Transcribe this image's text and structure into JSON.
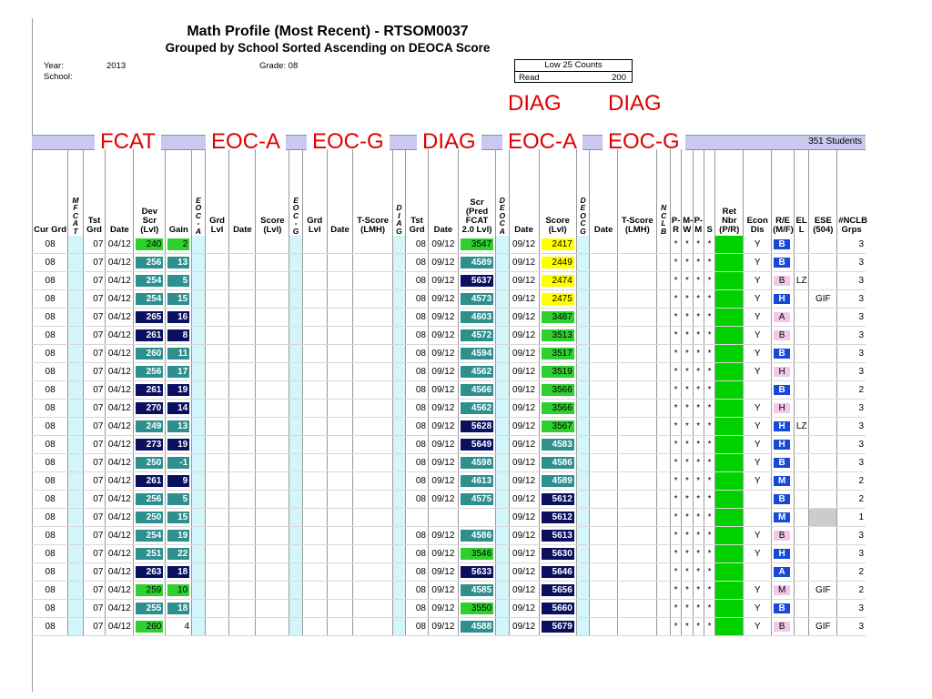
{
  "report": {
    "title": "Math Profile (Most Recent) - RTSOM0037",
    "subtitle": "Grouped by School Sorted Ascending on DEOCA Score",
    "year_label": "Year:",
    "year_value": "2013",
    "school_label": "School:",
    "grade_label": "Grade: 08",
    "low25_label": "Low 25 Counts",
    "low25_row_label": "Read",
    "low25_row_value": "200",
    "student_count": "351 Students"
  },
  "overlays": {
    "fcat": "FCAT",
    "eoca": "EOC-A",
    "eocg": "EOC-G",
    "diag": "DIAG",
    "diag_eoca_top": "DIAG",
    "diag_eoca_bottom": "EOC-A",
    "diag_eocg_top": "DIAG",
    "diag_eocg_bottom": "EOC-G"
  },
  "headers": [
    "Cur Grd",
    "MFCAT",
    "Tst Grd",
    "Date",
    "Dev Scr (Lvl)",
    "Gain",
    "EOC-A",
    "Grd Lvl",
    "Date",
    "Score (Lvl)",
    "EOC-G",
    "Grd Lvl",
    "Date",
    "T-Score (LMH)",
    "DIAG",
    "Tst Grd",
    "Date",
    "Scr (Pred FCAT 2.0 Lvl)",
    "DEOCA",
    "Date",
    "Score (Lvl)",
    "DEOCG",
    "Date",
    "T-Score (LMH)",
    "NCLB",
    "P-R",
    "M-W",
    "P-M",
    "S",
    "Ret Nbr (P/R)",
    "Econ Dis",
    "R/E (M/F)",
    "EL L",
    "ESE (504)",
    "#NCLB Grps"
  ],
  "rows": [
    {
      "cur": "08",
      "tst": "07",
      "date": "04/12",
      "dev": "240",
      "devc": "lime",
      "gain": "2",
      "dtst": "08",
      "ddate": "09/12",
      "scr": "3547",
      "scrc": "lime",
      "deodate": "09/12",
      "deoscore": "2417",
      "deoc": "yellow",
      "econ": "Y",
      "re": "B",
      "rec": "blue",
      "ell": "",
      "ese": "",
      "grps": "3"
    },
    {
      "cur": "08",
      "tst": "07",
      "date": "04/12",
      "dev": "256",
      "devc": "teal",
      "gain": "13",
      "dtst": "08",
      "ddate": "09/12",
      "scr": "4589",
      "scrc": "teal",
      "deodate": "09/12",
      "deoscore": "2449",
      "deoc": "yellow",
      "econ": "Y",
      "re": "B",
      "rec": "blue",
      "ell": "",
      "ese": "",
      "grps": "3"
    },
    {
      "cur": "08",
      "tst": "07",
      "date": "04/12",
      "dev": "254",
      "devc": "teal",
      "gain": "5",
      "dtst": "08",
      "ddate": "09/12",
      "scr": "5637",
      "scrc": "navy",
      "deodate": "09/12",
      "deoscore": "2474",
      "deoc": "yellow",
      "econ": "Y",
      "re": "B",
      "rec": "pink",
      "ell": "LZ",
      "ese": "",
      "grps": "3"
    },
    {
      "cur": "08",
      "tst": "07",
      "date": "04/12",
      "dev": "254",
      "devc": "teal",
      "gain": "15",
      "dtst": "08",
      "ddate": "09/12",
      "scr": "4573",
      "scrc": "teal",
      "deodate": "09/12",
      "deoscore": "2475",
      "deoc": "yellow",
      "econ": "Y",
      "re": "H",
      "rec": "blue",
      "ell": "",
      "ese": "GIF",
      "grps": "3"
    },
    {
      "cur": "08",
      "tst": "07",
      "date": "04/12",
      "dev": "265",
      "devc": "navy",
      "gain": "16",
      "dtst": "08",
      "ddate": "09/12",
      "scr": "4603",
      "scrc": "teal",
      "deodate": "09/12",
      "deoscore": "3487",
      "deoc": "lime",
      "econ": "Y",
      "re": "A",
      "rec": "pink",
      "ell": "",
      "ese": "",
      "grps": "3"
    },
    {
      "cur": "08",
      "tst": "07",
      "date": "04/12",
      "dev": "261",
      "devc": "navy",
      "gain": "8",
      "dtst": "08",
      "ddate": "09/12",
      "scr": "4572",
      "scrc": "teal",
      "deodate": "09/12",
      "deoscore": "3513",
      "deoc": "lime",
      "econ": "Y",
      "re": "B",
      "rec": "pink",
      "ell": "",
      "ese": "",
      "grps": "3"
    },
    {
      "cur": "08",
      "tst": "07",
      "date": "04/12",
      "dev": "260",
      "devc": "teal",
      "gain": "11",
      "dtst": "08",
      "ddate": "09/12",
      "scr": "4594",
      "scrc": "teal",
      "deodate": "09/12",
      "deoscore": "3517",
      "deoc": "lime",
      "econ": "Y",
      "re": "B",
      "rec": "blue",
      "ell": "",
      "ese": "",
      "grps": "3"
    },
    {
      "cur": "08",
      "tst": "07",
      "date": "04/12",
      "dev": "256",
      "devc": "teal",
      "gain": "17",
      "dtst": "08",
      "ddate": "09/12",
      "scr": "4562",
      "scrc": "teal",
      "deodate": "09/12",
      "deoscore": "3519",
      "deoc": "lime",
      "econ": "Y",
      "re": "H",
      "rec": "pink",
      "ell": "",
      "ese": "",
      "grps": "3"
    },
    {
      "cur": "08",
      "tst": "07",
      "date": "04/12",
      "dev": "261",
      "devc": "navy",
      "gain": "19",
      "dtst": "08",
      "ddate": "09/12",
      "scr": "4566",
      "scrc": "teal",
      "deodate": "09/12",
      "deoscore": "3566",
      "deoc": "lime",
      "econ": "",
      "re": "B",
      "rec": "blue",
      "ell": "",
      "ese": "",
      "grps": "2"
    },
    {
      "cur": "08",
      "tst": "07",
      "date": "04/12",
      "dev": "270",
      "devc": "navy",
      "gain": "14",
      "dtst": "08",
      "ddate": "09/12",
      "scr": "4562",
      "scrc": "teal",
      "deodate": "09/12",
      "deoscore": "3566",
      "deoc": "lime",
      "econ": "Y",
      "re": "H",
      "rec": "pink",
      "ell": "",
      "ese": "",
      "grps": "3"
    },
    {
      "cur": "08",
      "tst": "07",
      "date": "04/12",
      "dev": "249",
      "devc": "teal",
      "gain": "13",
      "dtst": "08",
      "ddate": "09/12",
      "scr": "5628",
      "scrc": "navy",
      "deodate": "09/12",
      "deoscore": "3567",
      "deoc": "lime",
      "econ": "Y",
      "re": "H",
      "rec": "blue",
      "ell": "LZ",
      "ese": "",
      "grps": "3"
    },
    {
      "cur": "08",
      "tst": "07",
      "date": "04/12",
      "dev": "273",
      "devc": "navy",
      "gain": "19",
      "dtst": "08",
      "ddate": "09/12",
      "scr": "5649",
      "scrc": "navy",
      "deodate": "09/12",
      "deoscore": "4583",
      "deoc": "teal",
      "econ": "Y",
      "re": "H",
      "rec": "blue",
      "ell": "",
      "ese": "",
      "grps": "3"
    },
    {
      "cur": "08",
      "tst": "07",
      "date": "04/12",
      "dev": "250",
      "devc": "teal",
      "gain": "-1",
      "dtst": "08",
      "ddate": "09/12",
      "scr": "4598",
      "scrc": "teal",
      "deodate": "09/12",
      "deoscore": "4586",
      "deoc": "teal",
      "econ": "Y",
      "re": "B",
      "rec": "blue",
      "ell": "",
      "ese": "",
      "grps": "3"
    },
    {
      "cur": "08",
      "tst": "07",
      "date": "04/12",
      "dev": "261",
      "devc": "navy",
      "gain": "9",
      "dtst": "08",
      "ddate": "09/12",
      "scr": "4613",
      "scrc": "teal",
      "deodate": "09/12",
      "deoscore": "4589",
      "deoc": "teal",
      "econ": "Y",
      "re": "M",
      "rec": "blue",
      "ell": "",
      "ese": "",
      "grps": "2"
    },
    {
      "cur": "08",
      "tst": "07",
      "date": "04/12",
      "dev": "256",
      "devc": "teal",
      "gain": "5",
      "dtst": "08",
      "ddate": "09/12",
      "scr": "4575",
      "scrc": "teal",
      "deodate": "09/12",
      "deoscore": "5612",
      "deoc": "navy",
      "econ": "",
      "re": "B",
      "rec": "blue",
      "ell": "",
      "ese": "",
      "grps": "2"
    },
    {
      "cur": "08",
      "tst": "07",
      "date": "04/12",
      "dev": "250",
      "devc": "teal",
      "gain": "15",
      "dtst": "",
      "ddate": "",
      "scr": "",
      "scrc": "",
      "deodate": "09/12",
      "deoscore": "5612",
      "deoc": "navy",
      "econ": "",
      "re": "M",
      "rec": "blue",
      "ell": "",
      "ese": "",
      "esegray": true,
      "grps": "1"
    },
    {
      "cur": "08",
      "tst": "07",
      "date": "04/12",
      "dev": "254",
      "devc": "teal",
      "gain": "19",
      "dtst": "08",
      "ddate": "09/12",
      "scr": "4586",
      "scrc": "teal",
      "deodate": "09/12",
      "deoscore": "5613",
      "deoc": "navy",
      "econ": "Y",
      "re": "B",
      "rec": "pink",
      "ell": "",
      "ese": "",
      "grps": "3"
    },
    {
      "cur": "08",
      "tst": "07",
      "date": "04/12",
      "dev": "251",
      "devc": "teal",
      "gain": "22",
      "dtst": "08",
      "ddate": "09/12",
      "scr": "3546",
      "scrc": "lime",
      "deodate": "09/12",
      "deoscore": "5630",
      "deoc": "navy",
      "econ": "Y",
      "re": "H",
      "rec": "blue",
      "ell": "",
      "ese": "",
      "grps": "3"
    },
    {
      "cur": "08",
      "tst": "07",
      "date": "04/12",
      "dev": "263",
      "devc": "navy",
      "gain": "18",
      "dtst": "08",
      "ddate": "09/12",
      "scr": "5633",
      "scrc": "navy",
      "deodate": "09/12",
      "deoscore": "5646",
      "deoc": "navy",
      "econ": "",
      "re": "A",
      "rec": "blue",
      "ell": "",
      "ese": "",
      "grps": "2"
    },
    {
      "cur": "08",
      "tst": "07",
      "date": "04/12",
      "dev": "259",
      "devc": "lime",
      "gain": "10",
      "dtst": "08",
      "ddate": "09/12",
      "scr": "4585",
      "scrc": "teal",
      "deodate": "09/12",
      "deoscore": "5656",
      "deoc": "navy",
      "econ": "Y",
      "re": "M",
      "rec": "pink",
      "ell": "",
      "ese": "GIF",
      "grps": "2"
    },
    {
      "cur": "08",
      "tst": "07",
      "date": "04/12",
      "dev": "255",
      "devc": "teal",
      "gain": "18",
      "dtst": "08",
      "ddate": "09/12",
      "scr": "3550",
      "scrc": "lime",
      "deodate": "09/12",
      "deoscore": "5660",
      "deoc": "navy",
      "econ": "Y",
      "re": "B",
      "rec": "blue",
      "ell": "",
      "ese": "",
      "grps": "3"
    },
    {
      "cur": "08",
      "tst": "07",
      "date": "04/12",
      "dev": "260",
      "devc": "lime",
      "gain": "4",
      "gainplain": true,
      "dtst": "08",
      "ddate": "09/12",
      "scr": "4588",
      "scrc": "teal",
      "deodate": "09/12",
      "deoscore": "5679",
      "deoc": "navy",
      "econ": "Y",
      "re": "B",
      "rec": "pink",
      "ell": "",
      "ese": "GIF",
      "grps": "3"
    }
  ],
  "star": "*"
}
